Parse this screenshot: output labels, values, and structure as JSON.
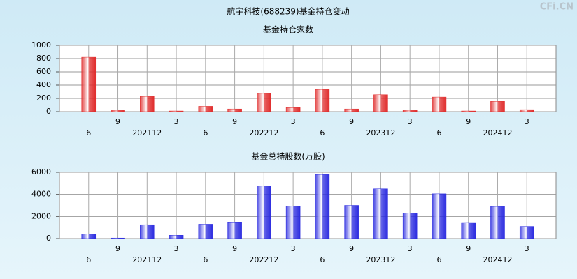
{
  "title": "航宇科技(688239)基金持仓变动",
  "watermark": "CFi.CN",
  "chart_data": [
    {
      "type": "bar",
      "title": "基金持仓家数",
      "categories": [
        "6",
        "9",
        "202112",
        "3",
        "6",
        "9",
        "202212",
        "3",
        "6",
        "9",
        "202312",
        "3",
        "6",
        "9",
        "202412",
        "3"
      ],
      "values": [
        820,
        20,
        230,
        10,
        80,
        40,
        275,
        60,
        335,
        40,
        255,
        20,
        220,
        10,
        155,
        30
      ],
      "color": "#e02c2c",
      "ylim": [
        0,
        1000
      ],
      "yticks": [
        0,
        200,
        400,
        600,
        800,
        1000
      ],
      "grid": true
    },
    {
      "type": "bar",
      "title": "基金总持股数(万股)",
      "categories": [
        "6",
        "9",
        "202112",
        "3",
        "6",
        "9",
        "202212",
        "3",
        "6",
        "9",
        "202312",
        "3",
        "6",
        "9",
        "202412",
        "3"
      ],
      "values": [
        420,
        50,
        1250,
        300,
        1300,
        1500,
        4750,
        2950,
        5800,
        3000,
        4500,
        2300,
        4050,
        1450,
        2900,
        1100
      ],
      "color": "#2c2ce0",
      "ylim": [
        0,
        6000
      ],
      "yticks": [
        0,
        2000,
        4000,
        6000
      ],
      "grid": true
    }
  ]
}
